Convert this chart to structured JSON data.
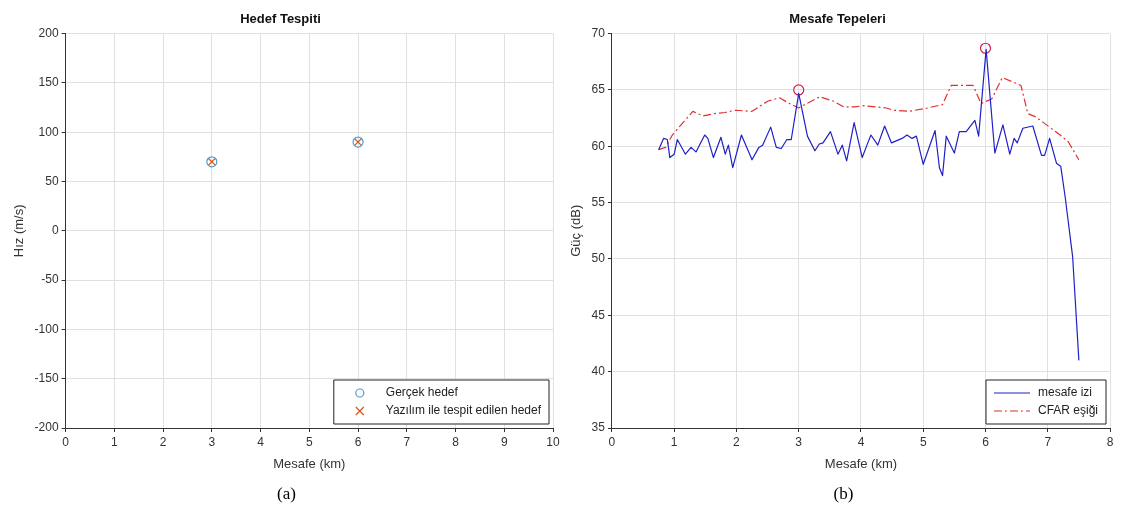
{
  "chart_data": [
    {
      "type": "scatter",
      "title": "Hedef Tespiti",
      "xlabel": "Mesafe (km)",
      "ylabel": "Hız (m/s)",
      "xlim": [
        0,
        10
      ],
      "xticks": [
        0,
        1,
        2,
        3,
        4,
        5,
        6,
        7,
        8,
        9,
        10
      ],
      "ylim": [
        -200,
        200
      ],
      "yticks": [
        -200,
        -150,
        -100,
        -50,
        0,
        50,
        100,
        150,
        200
      ],
      "grid": true,
      "legend": "bottom right",
      "annotations": [
        "(a)"
      ],
      "series": [
        {
          "name": "Gerçek hedef",
          "color": "#4a9fd0",
          "marker": "circle",
          "x": [
            3,
            6
          ],
          "values": [
            70,
            90
          ]
        },
        {
          "name": "Yazılım ile tespit edilen hedef",
          "color": "#d95319",
          "marker": "cross",
          "x": [
            3,
            6
          ],
          "values": [
            70,
            90
          ]
        }
      ]
    },
    {
      "type": "line",
      "title": "Mesafe Tepeleri",
      "xlabel": "Mesafe (km)",
      "ylabel": "Güç (dB)",
      "xlim": [
        0,
        8
      ],
      "xticks": [
        0,
        1,
        2,
        3,
        4,
        5,
        6,
        7,
        8
      ],
      "ylim": [
        35,
        70
      ],
      "yticks": [
        35,
        40,
        45,
        50,
        55,
        60,
        65,
        70
      ],
      "grid": true,
      "legend": "bottom right",
      "annotations": [
        "(b)"
      ],
      "series": [
        {
          "name": "mesafe izi",
          "color": "#2020c8",
          "line_style": "solid",
          "x": [
            0.75,
            0.83,
            0.89,
            0.93,
            1.0,
            1.05,
            1.18,
            1.27,
            1.35,
            1.49,
            1.54,
            1.63,
            1.75,
            1.82,
            1.87,
            1.94,
            2.08,
            2.25,
            2.36,
            2.42,
            2.55,
            2.64,
            2.72,
            2.81,
            2.88,
            3.0,
            3.14,
            3.26,
            3.33,
            3.39,
            3.51,
            3.63,
            3.7,
            3.77,
            3.89,
            4.02,
            4.11,
            4.16,
            4.27,
            4.38,
            4.49,
            4.66,
            4.74,
            4.82,
            4.89,
            5.0,
            5.19,
            5.26,
            5.31,
            5.37,
            5.5,
            5.58,
            5.69,
            5.83,
            5.89,
            6.01,
            6.15,
            6.28,
            6.39,
            6.46,
            6.51,
            6.6,
            6.76,
            6.9,
            6.95,
            7.03,
            7.14,
            7.21,
            7.28,
            7.4,
            7.5
          ],
          "values": [
            59.7,
            60.7,
            60.6,
            59.0,
            59.3,
            60.6,
            59.3,
            59.9,
            59.5,
            61.0,
            60.7,
            59.0,
            60.8,
            59.3,
            60.1,
            58.1,
            61.0,
            58.8,
            59.9,
            60.1,
            61.7,
            59.9,
            59.8,
            60.6,
            60.6,
            64.7,
            60.9,
            59.6,
            60.2,
            60.3,
            61.3,
            59.3,
            60.1,
            58.7,
            62.1,
            59.0,
            60.3,
            61.0,
            60.1,
            61.8,
            60.3,
            60.7,
            61.0,
            60.7,
            60.9,
            58.4,
            61.4,
            58.1,
            57.4,
            60.9,
            59.4,
            61.3,
            61.3,
            62.3,
            60.9,
            68.6,
            59.4,
            61.9,
            59.3,
            60.7,
            60.3,
            61.6,
            61.8,
            59.2,
            59.2,
            60.7,
            58.5,
            58.2,
            55.5,
            50.2,
            41.0
          ]
        },
        {
          "name": "CFAR eşiği",
          "color": "#e03030",
          "line_style": "dashed",
          "x": [
            0.75,
            0.86,
            0.97,
            1.11,
            1.3,
            1.46,
            1.65,
            1.82,
            1.98,
            2.25,
            2.5,
            2.69,
            2.85,
            3.0,
            3.13,
            3.34,
            3.56,
            3.72,
            3.89,
            4.05,
            4.41,
            4.52,
            4.77,
            5.07,
            5.31,
            5.45,
            5.8,
            5.93,
            6.1,
            6.27,
            6.57,
            6.68,
            6.81,
            7.03,
            7.2,
            7.33,
            7.5
          ],
          "values": [
            59.7,
            59.9,
            61.0,
            61.9,
            63.1,
            62.7,
            62.9,
            63.0,
            63.2,
            63.1,
            64.0,
            64.3,
            63.8,
            63.4,
            63.8,
            64.4,
            64.0,
            63.5,
            63.5,
            63.6,
            63.4,
            63.2,
            63.1,
            63.4,
            63.7,
            65.4,
            65.4,
            63.8,
            64.2,
            66.1,
            65.4,
            62.9,
            62.6,
            61.7,
            61.0,
            60.4,
            58.8
          ]
        },
        {
          "type": "scatter",
          "color": "#d02050",
          "marker": "circle",
          "x": [
            3,
            6
          ],
          "values": [
            65,
            68.7
          ]
        }
      ]
    }
  ]
}
